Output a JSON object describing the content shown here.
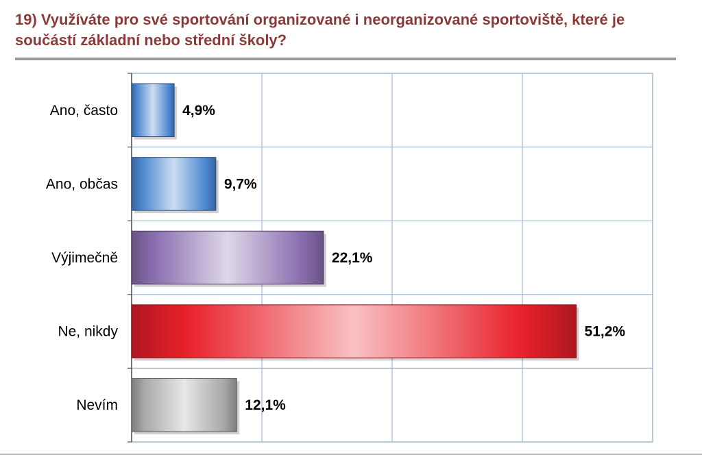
{
  "title": "19) Využíváte pro své sportování organizované i neorganizované sportoviště, které je součástí základní nebo střední školy?",
  "chart_data": {
    "type": "bar",
    "orientation": "horizontal",
    "categories": [
      "Ano, často",
      "Ano, občas",
      "Výjimečně",
      "Ne, nikdy",
      "Nevím"
    ],
    "values": [
      4.9,
      9.7,
      22.1,
      51.2,
      12.1
    ],
    "value_labels": [
      "4,9%",
      "9,7%",
      "22,1%",
      "51,2%",
      "12,1%"
    ],
    "xlim": [
      0,
      60
    ],
    "grid": true,
    "legend": "none",
    "bar_colors": [
      "#4a86d0",
      "#4a86d0",
      "#8a6fb0",
      "#e8202a",
      "#a8a8a8"
    ]
  },
  "colors": {
    "title": "#8b3a3a",
    "rule": "#9a9a9a",
    "grid": "#9fb6cf"
  }
}
